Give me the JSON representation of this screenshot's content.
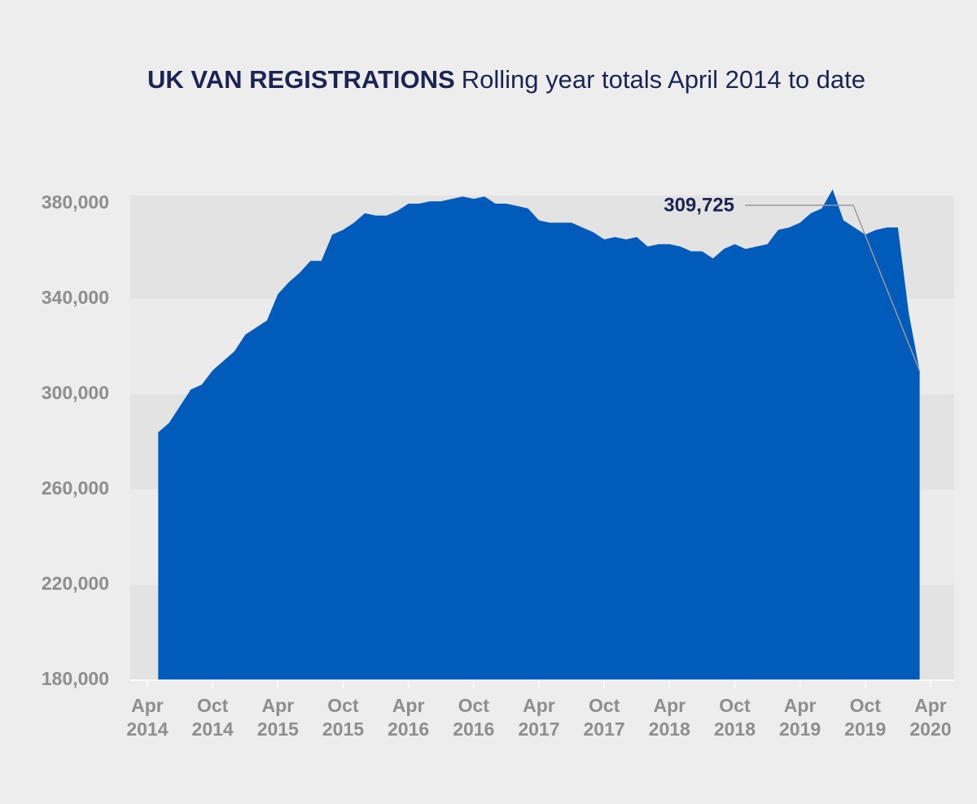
{
  "chart_data": {
    "type": "area",
    "title": "UK VAN REGISTRATIONS",
    "subtitle": "Rolling year totals April 2014 to date",
    "annotation": "309,725",
    "color": "#005bbb",
    "x": [
      "2014-05",
      "2014-06",
      "2014-07",
      "2014-08",
      "2014-09",
      "2014-10",
      "2014-11",
      "2014-12",
      "2015-01",
      "2015-02",
      "2015-03",
      "2015-04",
      "2015-05",
      "2015-06",
      "2015-07",
      "2015-08",
      "2015-09",
      "2015-10",
      "2015-11",
      "2015-12",
      "2016-01",
      "2016-02",
      "2016-03",
      "2016-04",
      "2016-05",
      "2016-06",
      "2016-07",
      "2016-08",
      "2016-09",
      "2016-10",
      "2016-11",
      "2016-12",
      "2017-01",
      "2017-02",
      "2017-03",
      "2017-04",
      "2017-05",
      "2017-06",
      "2017-07",
      "2017-08",
      "2017-09",
      "2017-10",
      "2017-11",
      "2017-12",
      "2018-01",
      "2018-02",
      "2018-03",
      "2018-04",
      "2018-05",
      "2018-06",
      "2018-07",
      "2018-08",
      "2018-09",
      "2018-10",
      "2018-11",
      "2018-12",
      "2019-01",
      "2019-02",
      "2019-03",
      "2019-04",
      "2019-05",
      "2019-06",
      "2019-07",
      "2019-08",
      "2019-09",
      "2019-10",
      "2019-11",
      "2019-12",
      "2020-01",
      "2020-02",
      "2020-03"
    ],
    "values": [
      284000,
      288000,
      295000,
      302000,
      304000,
      310000,
      314000,
      318000,
      325000,
      328000,
      331000,
      342000,
      347000,
      351000,
      356000,
      356000,
      367000,
      369000,
      372000,
      376000,
      375000,
      375000,
      377000,
      380000,
      380000,
      381000,
      381000,
      382000,
      383000,
      382000,
      383000,
      380000,
      380000,
      379000,
      378000,
      373000,
      372000,
      372000,
      372000,
      370000,
      368000,
      365000,
      366000,
      365000,
      366000,
      362000,
      363000,
      363000,
      362000,
      360000,
      360000,
      357000,
      361000,
      363000,
      361000,
      362000,
      363000,
      369000,
      370000,
      372000,
      376000,
      378000,
      386000,
      373000,
      370000,
      367000,
      369000,
      370000,
      370000,
      334000,
      309725
    ],
    "xlim": [
      "2014-03",
      "2020-05"
    ],
    "xticks": [
      {
        "value": "2014-04",
        "label": "Apr 2014"
      },
      {
        "value": "2014-10",
        "label": "Oct 2014"
      },
      {
        "value": "2015-04",
        "label": "Apr 2015"
      },
      {
        "value": "2015-10",
        "label": "Oct 2015"
      },
      {
        "value": "2016-04",
        "label": "Apr 2016"
      },
      {
        "value": "2016-10",
        "label": "Oct 2016"
      },
      {
        "value": "2017-04",
        "label": "Apr 2017"
      },
      {
        "value": "2017-10",
        "label": "Oct 2017"
      },
      {
        "value": "2018-04",
        "label": "Apr 2018"
      },
      {
        "value": "2018-10",
        "label": "Oct 2018"
      },
      {
        "value": "2019-04",
        "label": "Apr 2019"
      },
      {
        "value": "2019-10",
        "label": "Oct 2019"
      },
      {
        "value": "2020-04",
        "label": "Apr 2020"
      }
    ],
    "ylim": [
      180000,
      380000
    ],
    "yticks": [
      {
        "value": 180000,
        "label": "180,000"
      },
      {
        "value": 220000,
        "label": "220,000"
      },
      {
        "value": 260000,
        "label": "260,000"
      },
      {
        "value": 300000,
        "label": "300,000"
      },
      {
        "value": 340000,
        "label": "340,000"
      },
      {
        "value": 380000,
        "label": "380,000"
      }
    ],
    "grid": "bands"
  }
}
